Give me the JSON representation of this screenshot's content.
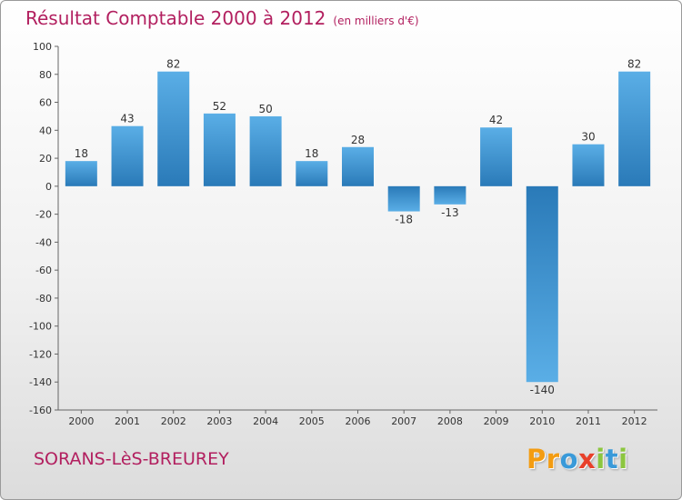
{
  "header": {
    "title": "Résultat Comptable 2000 à 2012",
    "unit_note": "(en milliers d'€)"
  },
  "footer": {
    "commune": "SORANS-LèS-BREUREY",
    "logo_letters": [
      {
        "char": "P",
        "color": "#f39c12"
      },
      {
        "char": "r",
        "color": "#f39c12"
      },
      {
        "char": "o",
        "color": "#3a9ad9"
      },
      {
        "char": "x",
        "color": "#e8402a"
      },
      {
        "char": "i",
        "color": "#8cc63f"
      },
      {
        "char": "t",
        "color": "#3a9ad9"
      },
      {
        "char": "i",
        "color": "#8cc63f"
      }
    ]
  },
  "colors": {
    "accent": "#b21f5f",
    "bar_light": "#5aaee6",
    "bar_dark": "#2a7ab8",
    "axis": "#666666"
  },
  "chart_data": {
    "type": "bar",
    "title": "Résultat Comptable 2000 à 2012",
    "subtitle": "(en milliers d'€)",
    "xlabel": "",
    "ylabel": "",
    "categories": [
      "2000",
      "2001",
      "2002",
      "2003",
      "2004",
      "2005",
      "2006",
      "2007",
      "2008",
      "2009",
      "2010",
      "2011",
      "2012"
    ],
    "values": [
      18,
      43,
      82,
      52,
      50,
      18,
      28,
      -18,
      -13,
      42,
      -140,
      30,
      82
    ],
    "value_labels": [
      "18",
      "43",
      "82",
      "52",
      "50",
      "18",
      "28",
      "-18",
      "-13",
      "42",
      "-140",
      "30",
      "82"
    ],
    "ylim": [
      -160,
      100
    ],
    "yticks": [
      100,
      80,
      60,
      40,
      20,
      0,
      -20,
      -40,
      -60,
      -80,
      -100,
      -120,
      -140,
      -160
    ],
    "ytick_labels": [
      "100",
      "80",
      "60",
      "40",
      "20",
      "0",
      "-20",
      "-40",
      "-60",
      "-80",
      "-100",
      "-120",
      "-140",
      "-160"
    ],
    "grid": false,
    "legend": "none"
  }
}
